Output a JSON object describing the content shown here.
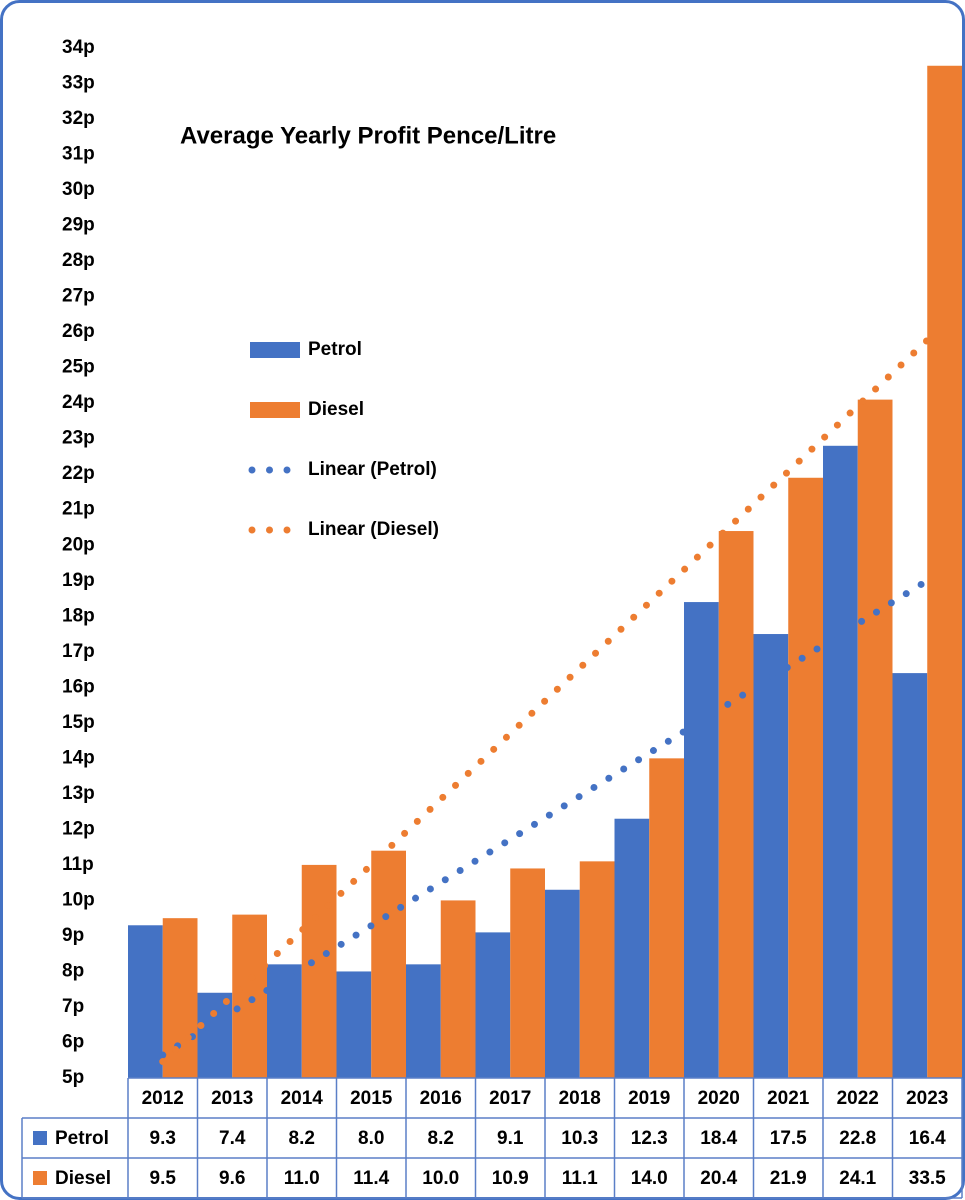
{
  "chart_data": {
    "type": "bar",
    "title": "Average Yearly Profit Pence/Litre",
    "categories": [
      "2012",
      "2013",
      "2014",
      "2015",
      "2016",
      "2017",
      "2018",
      "2019",
      "2020",
      "2021",
      "2022",
      "2023"
    ],
    "series": [
      {
        "name": "Petrol",
        "color": "#4472c4",
        "values": [
          9.3,
          7.4,
          8.2,
          8.0,
          8.2,
          9.1,
          10.3,
          12.3,
          18.4,
          17.5,
          22.8,
          16.4
        ],
        "value_labels": [
          "9.3",
          "7.4",
          "8.2",
          "8.0",
          "8.2",
          "9.1",
          "10.3",
          "12.3",
          "18.4",
          "17.5",
          "22.8",
          "16.4"
        ],
        "trendline": {
          "name": "Linear (Petrol)",
          "style": "dotted"
        }
      },
      {
        "name": "Diesel",
        "color": "#ed7d31",
        "values": [
          9.5,
          9.6,
          11.0,
          11.4,
          10.0,
          10.9,
          11.1,
          14.0,
          20.4,
          21.9,
          24.1,
          33.5
        ],
        "value_labels": [
          "9.5",
          "9.6",
          "11.0",
          "11.4",
          "10.0",
          "10.9",
          "11.1",
          "14.0",
          "20.4",
          "21.9",
          "24.1",
          "33.5"
        ],
        "trendline": {
          "name": "Linear (Diesel)",
          "style": "dotted"
        }
      }
    ],
    "ylim": [
      5,
      34
    ],
    "yticks": [
      {
        "value": 5,
        "label": "5p"
      },
      {
        "value": 6,
        "label": "6p"
      },
      {
        "value": 7,
        "label": "7p"
      },
      {
        "value": 8,
        "label": "8p"
      },
      {
        "value": 9,
        "label": "9p"
      },
      {
        "value": 10,
        "label": "10p"
      },
      {
        "value": 11,
        "label": "11p"
      },
      {
        "value": 12,
        "label": "12p"
      },
      {
        "value": 13,
        "label": "13p"
      },
      {
        "value": 14,
        "label": "14p"
      },
      {
        "value": 15,
        "label": "15p"
      },
      {
        "value": 16,
        "label": "16p"
      },
      {
        "value": 17,
        "label": "17p"
      },
      {
        "value": 18,
        "label": "18p"
      },
      {
        "value": 19,
        "label": "19p"
      },
      {
        "value": 20,
        "label": "20p"
      },
      {
        "value": 21,
        "label": "21p"
      },
      {
        "value": 22,
        "label": "22p"
      },
      {
        "value": 23,
        "label": "23p"
      },
      {
        "value": 24,
        "label": "24p"
      },
      {
        "value": 25,
        "label": "25p"
      },
      {
        "value": 26,
        "label": "26p"
      },
      {
        "value": 27,
        "label": "27p"
      },
      {
        "value": 28,
        "label": "28p"
      },
      {
        "value": 29,
        "label": "29p"
      },
      {
        "value": 30,
        "label": "30p"
      },
      {
        "value": 31,
        "label": "31p"
      },
      {
        "value": 32,
        "label": "32p"
      },
      {
        "value": 33,
        "label": "33p"
      },
      {
        "value": 34,
        "label": "34p"
      }
    ],
    "grid": false,
    "legend": "upper-left",
    "data_table": true
  }
}
